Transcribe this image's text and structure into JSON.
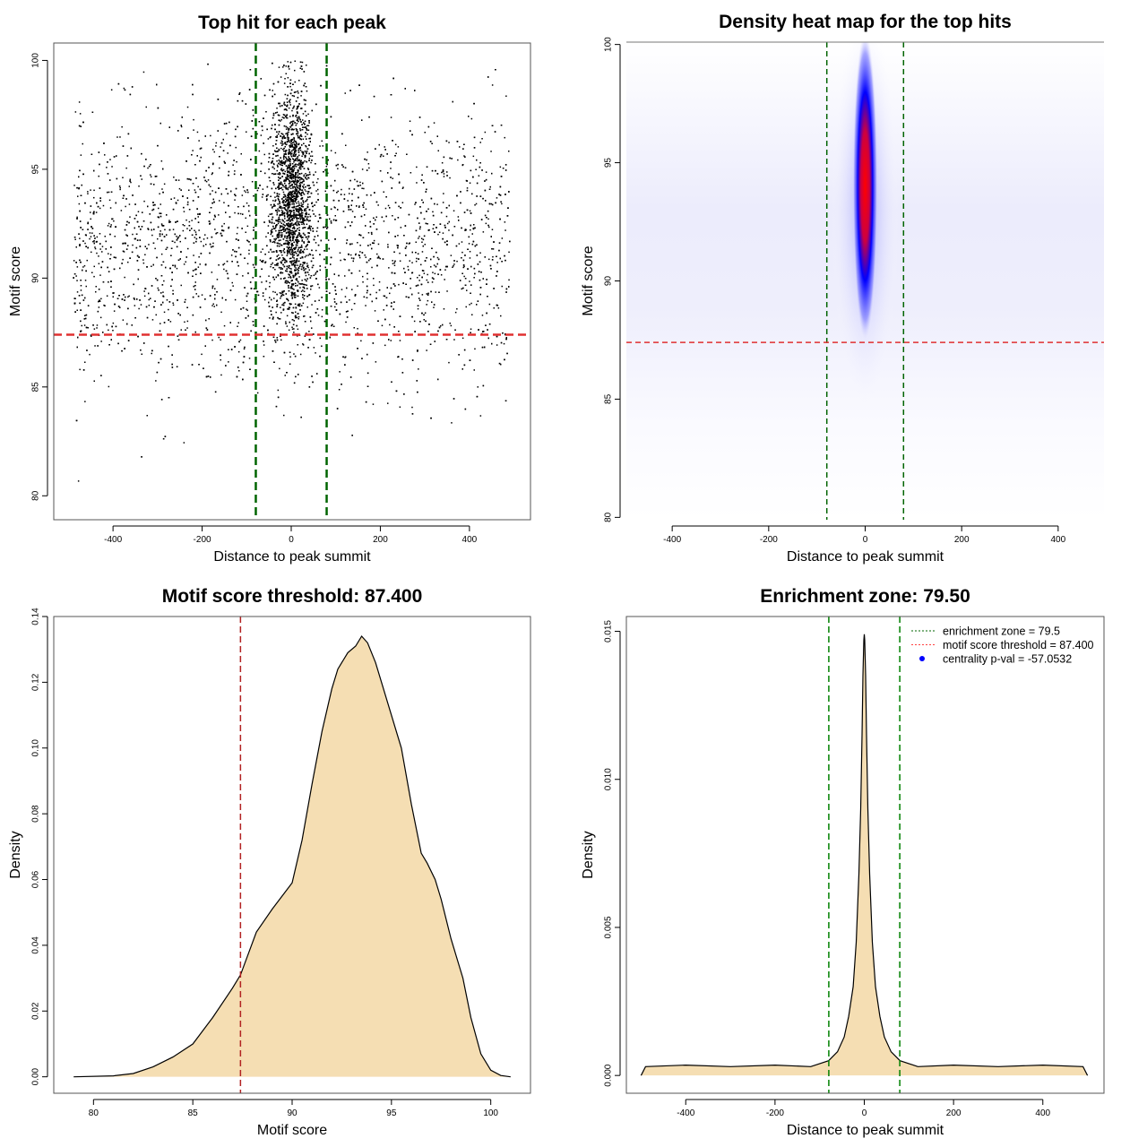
{
  "chart_data": [
    {
      "type": "scatter",
      "title": "Top hit for each peak",
      "xlabel": "Distance to peak summit",
      "ylabel": "Motif score",
      "xlim": [
        -533,
        537
      ],
      "ylim": [
        78.9,
        100.8
      ],
      "xticks": [
        "-400",
        "-200",
        "0",
        "200",
        "400"
      ],
      "yticks": [
        "80",
        "85",
        "90",
        "95",
        "100"
      ],
      "vlines": [
        -79.5,
        79.5
      ],
      "hline": 87.4,
      "colors": {
        "points": "#000000",
        "vlines": "#006400",
        "hline": "#e03030"
      }
    },
    {
      "type": "heatmap",
      "title": "Density heat map for the top hits",
      "xlabel": "Distance to peak summit",
      "ylabel": "Motif score",
      "xlim": [
        -495,
        495
      ],
      "ylim": [
        79.9,
        100.1
      ],
      "xticks": [
        "-400",
        "-200",
        "0",
        "200",
        "400"
      ],
      "yticks": [
        "80",
        "85",
        "90",
        "95",
        "100"
      ],
      "peak": {
        "x": 0,
        "y": 94
      },
      "vlines": [
        -79.5,
        79.5
      ],
      "hline": 87.4,
      "colors": {
        "low": "#ffffff",
        "mid": "#0000ff",
        "high": "#ff0000",
        "vlines": "#006400",
        "hline": "#e03030"
      }
    },
    {
      "type": "area",
      "title": "Motif score threshold: 87.400",
      "xlabel": "Motif score",
      "ylabel": "Density",
      "xlim": [
        78,
        102
      ],
      "ylim": [
        -0.005,
        0.14
      ],
      "xticks": [
        "80",
        "85",
        "90",
        "95",
        "100"
      ],
      "yticks": [
        "0.00",
        "0.02",
        "0.04",
        "0.06",
        "0.08",
        "0.10",
        "0.12",
        "0.14"
      ],
      "x": [
        79,
        81,
        82,
        83,
        84,
        85,
        86,
        87,
        87.4,
        88.2,
        89,
        90,
        90.5,
        91,
        91.5,
        92,
        92.3,
        92.8,
        93.2,
        93.5,
        93.8,
        94.2,
        95,
        95.5,
        96,
        96.5,
        96.8,
        97.2,
        97.5,
        98,
        98.6,
        99,
        99.5,
        100,
        100.5,
        101
      ],
      "y": [
        0,
        0.0003,
        0.001,
        0.003,
        0.006,
        0.01,
        0.018,
        0.027,
        0.031,
        0.044,
        0.051,
        0.059,
        0.072,
        0.089,
        0.105,
        0.118,
        0.124,
        0.129,
        0.131,
        0.134,
        0.132,
        0.126,
        0.11,
        0.1,
        0.083,
        0.068,
        0.065,
        0.06,
        0.054,
        0.042,
        0.03,
        0.018,
        0.007,
        0.002,
        0.0004,
        0
      ],
      "fill": "#f5deb3",
      "vline": 87.4,
      "vline_color": "#b22222"
    },
    {
      "type": "area",
      "title": "Enrichment zone: 79.50",
      "xlabel": "Distance to peak summit",
      "ylabel": "Density",
      "xlim": [
        -533,
        537
      ],
      "ylim": [
        -0.0006,
        0.0155
      ],
      "xticks": [
        "-400",
        "-200",
        "0",
        "200",
        "400"
      ],
      "yticks": [
        "0.000",
        "0.005",
        "0.010",
        "0.015"
      ],
      "x": [
        -500,
        -490,
        -400,
        -300,
        -200,
        -120,
        -80,
        -60,
        -45,
        -35,
        -25,
        -18,
        -12,
        -8,
        -5,
        -3,
        -1,
        0,
        1,
        3,
        5,
        8,
        12,
        18,
        25,
        35,
        45,
        60,
        80,
        120,
        200,
        300,
        400,
        490,
        500
      ],
      "y": [
        0,
        0.0003,
        0.00035,
        0.0003,
        0.00035,
        0.0003,
        0.0005,
        0.0008,
        0.0013,
        0.002,
        0.003,
        0.0045,
        0.0068,
        0.009,
        0.0115,
        0.0135,
        0.0147,
        0.0149,
        0.0147,
        0.0135,
        0.0115,
        0.009,
        0.0068,
        0.0045,
        0.003,
        0.002,
        0.0013,
        0.0008,
        0.0005,
        0.0003,
        0.00035,
        0.0003,
        0.00035,
        0.0003,
        0
      ],
      "fill": "#f5deb3",
      "vlines": [
        -79.5,
        79.5
      ],
      "vline_color": "#008000",
      "legend": {
        "placement": "top-right",
        "entries": [
          "enrichment zone = 79.5",
          "motif score threshold = 87.400",
          "centrality p-val = -57.0532"
        ],
        "colors": [
          "#006400",
          "#ff4040",
          "#0000ff"
        ]
      }
    }
  ]
}
